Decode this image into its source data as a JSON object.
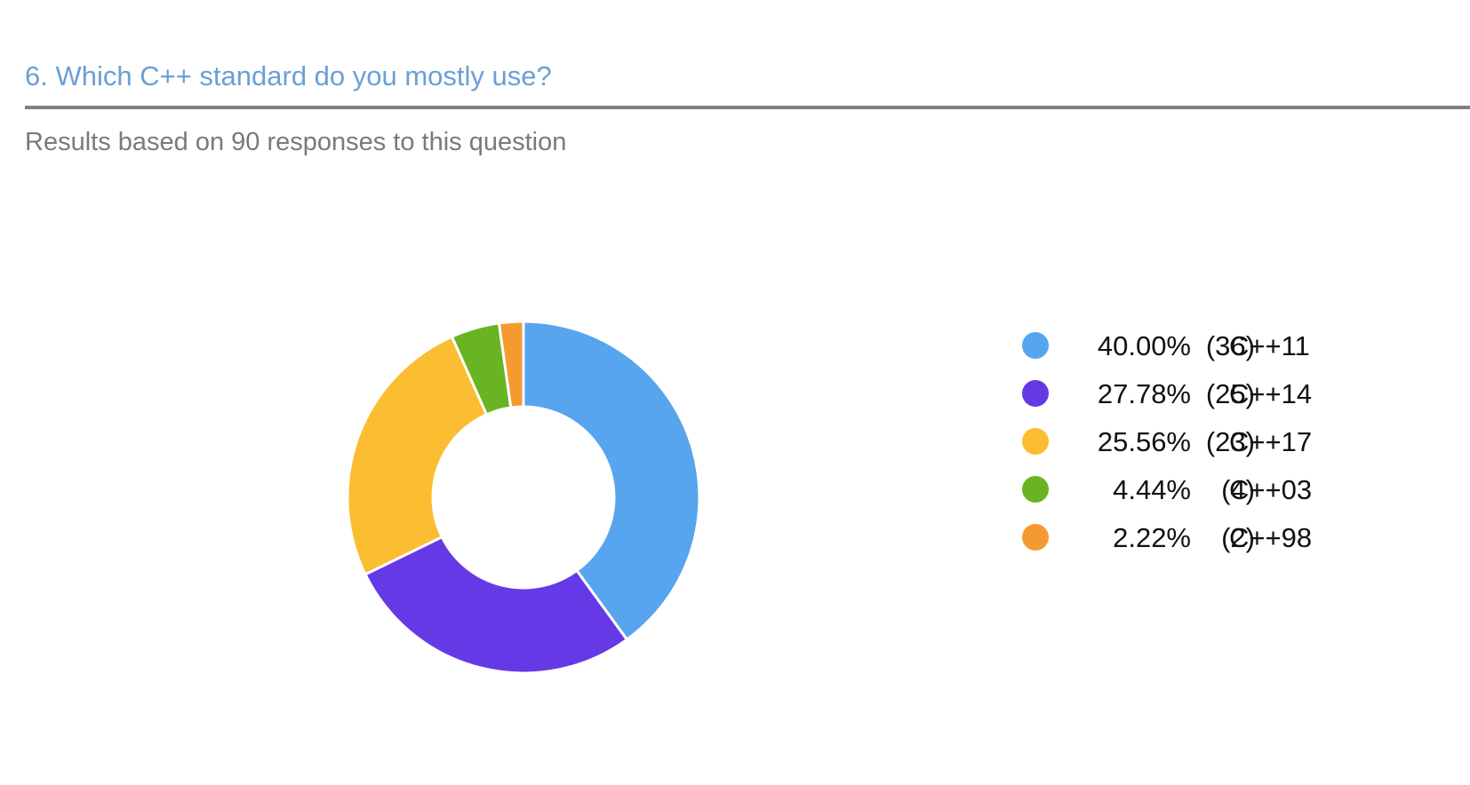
{
  "question": {
    "title": "6. Which C++ standard do you mostly use?",
    "subtitle": "Results based on 90 responses to this question"
  },
  "chart_data": {
    "type": "pie",
    "donut": true,
    "total_responses": 90,
    "legend_position": "right",
    "slices": [
      {
        "label": "C++11",
        "count": 36,
        "percent": 40.0,
        "percent_label": "40.00%",
        "count_label": "(36)",
        "color": "#57a5ee"
      },
      {
        "label": "C++14",
        "count": 25,
        "percent": 27.78,
        "percent_label": "27.78%",
        "count_label": "(25)",
        "color": "#653ae6"
      },
      {
        "label": "C++17",
        "count": 23,
        "percent": 25.56,
        "percent_label": "25.56%",
        "count_label": "(23)",
        "color": "#fbbd31"
      },
      {
        "label": "C++03",
        "count": 4,
        "percent": 4.44,
        "percent_label": "4.44%",
        "count_label": "(4)",
        "color": "#69b423"
      },
      {
        "label": "C++98",
        "count": 2,
        "percent": 2.22,
        "percent_label": "2.22%",
        "count_label": "(2)",
        "color": "#f59a31"
      }
    ]
  }
}
